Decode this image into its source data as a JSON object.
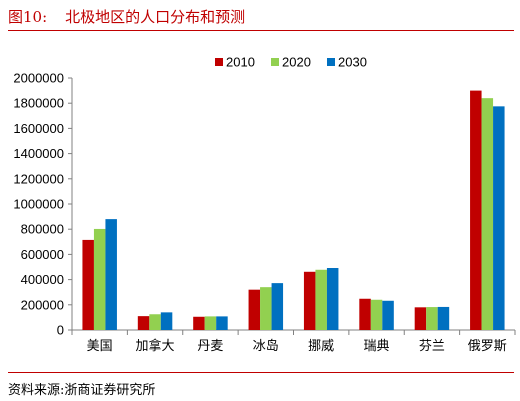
{
  "header": {
    "figure_number": "图10:",
    "title": "北极地区的人口分布和预测"
  },
  "footer": {
    "source": "资料来源:浙商证券研究所"
  },
  "chart_data": {
    "type": "bar",
    "categories": [
      "美国",
      "加拿大",
      "丹麦",
      "冰岛",
      "挪威",
      "瑞典",
      "芬兰",
      "俄罗斯"
    ],
    "series": [
      {
        "name": "2010",
        "color": "#c00000",
        "values": [
          715000,
          110000,
          105000,
          320000,
          462000,
          248000,
          180000,
          1900000
        ]
      },
      {
        "name": "2020",
        "color": "#92d050",
        "values": [
          802000,
          125000,
          108000,
          340000,
          478000,
          240000,
          182000,
          1840000
        ]
      },
      {
        "name": "2030",
        "color": "#0070c0",
        "values": [
          880000,
          140000,
          108000,
          372000,
          492000,
          232000,
          183000,
          1775000
        ]
      }
    ],
    "ylim": [
      0,
      2000000
    ],
    "yticks": [
      0,
      200000,
      400000,
      600000,
      800000,
      1000000,
      1200000,
      1400000,
      1600000,
      1800000,
      2000000
    ],
    "xlabel": "",
    "ylabel": "",
    "grid": false,
    "legend_position": "top-right"
  }
}
